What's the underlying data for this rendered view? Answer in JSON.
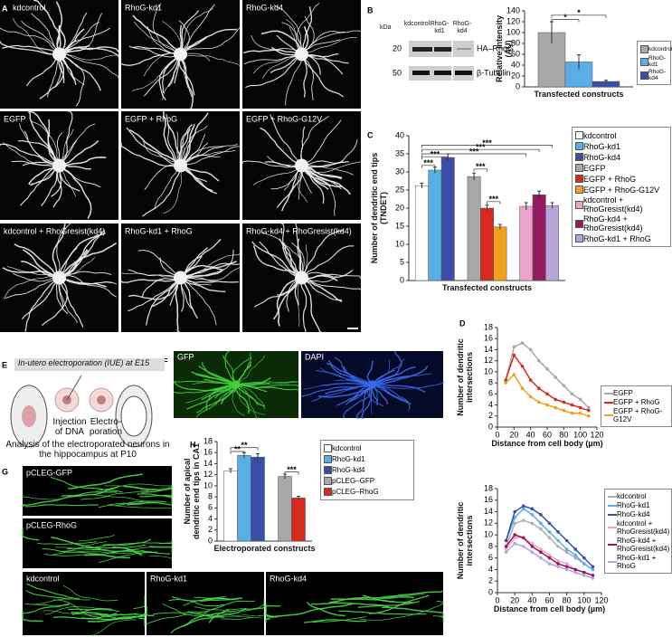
{
  "panel_labels": [
    "A",
    "B",
    "C",
    "D",
    "E",
    "F",
    "G",
    "H"
  ],
  "panel_a": [
    "kdcontrol",
    "RhoG-kd1",
    "RhoG-kd4",
    "EGFP",
    "EGFP + RhoG",
    "EGFP + RhoG-G12V",
    "kdcontrol + RhoGresist(kd4)",
    "RhoG-kd1 + RhoG",
    "RhoG-kd4 + RhoGresist(kd4)"
  ],
  "blot": {
    "unit": "kDa",
    "lanes": [
      "kdcontrol",
      "RhoG-kd1",
      "RhoG-kd4"
    ],
    "markers": [
      20,
      50
    ],
    "bands": [
      "HA–RhoG",
      "β-Tubulin"
    ]
  },
  "panel_e": {
    "title": "In-utero electroporation (IUE) at E15",
    "steps": [
      "Injection of DNA",
      "Electro-poration"
    ],
    "caption": "Analysis of the electroporated neurons in the hippocampus at P10"
  },
  "panel_f": [
    "GFP",
    "DAPI"
  ],
  "panel_g": [
    "pCLEG-GFP",
    "pCLEG-RhoG",
    "kdcontrol",
    "RhoG-kd1",
    "RhoG-kd4"
  ],
  "chart_data": [
    {
      "type": "bar",
      "ylabel": "Relative intensity (AU)",
      "xlabel": "Transfected constructs",
      "ylim": [
        0,
        140
      ],
      "yticks": [
        0,
        20,
        40,
        60,
        80,
        100,
        120,
        140
      ],
      "series": [
        {
          "name": "kdcontrol",
          "color": "#a8a8a8",
          "values": [
            100
          ],
          "errors": [
            20
          ]
        },
        {
          "name": "RhoG-kd1",
          "color": "#5aaee6",
          "values": [
            46
          ],
          "errors": [
            13
          ]
        },
        {
          "name": "RhoG-kd4",
          "color": "#3a4ea8",
          "values": [
            10
          ],
          "errors": [
            2
          ]
        }
      ],
      "annotations": [
        "*",
        "*"
      ]
    },
    {
      "type": "bar",
      "ylabel": "Number of dendritic end tips (TNDET)",
      "xlabel": "Transfected constructs",
      "ylim": [
        0,
        40
      ],
      "yticks": [
        0,
        5,
        10,
        15,
        20,
        25,
        30,
        35,
        40
      ],
      "series": [
        {
          "name": "kdcontrol",
          "color": "#ffffff",
          "values": [
            26.2
          ],
          "errors": [
            0.7
          ]
        },
        {
          "name": "RhoG-kd1",
          "color": "#5aaee6",
          "values": [
            30.5
          ],
          "errors": [
            0.8
          ]
        },
        {
          "name": "RhoG-kd4",
          "color": "#3a4ea8",
          "values": [
            34
          ],
          "errors": [
            1
          ]
        },
        {
          "name": "EGFP",
          "color": "#a8a8a8",
          "values": [
            28.7
          ],
          "errors": [
            1
          ]
        },
        {
          "name": "EGFP + RhoG",
          "color": "#d42a20",
          "values": [
            20
          ],
          "errors": [
            0.8
          ]
        },
        {
          "name": "EGFP + RhoG-G12V",
          "color": "#f0a020",
          "values": [
            14.8
          ],
          "errors": [
            0.7
          ]
        },
        {
          "name": "kdcontrol + RhoGresist(kd4)",
          "color": "#eca4cc",
          "values": [
            20.5
          ],
          "errors": [
            1
          ]
        },
        {
          "name": "RhoG-kd4 + RhoGresist(kd4)",
          "color": "#921a5e",
          "values": [
            23.7
          ],
          "errors": [
            1
          ]
        },
        {
          "name": "RhoG-kd1 + RhoG",
          "color": "#b8a4d8",
          "values": [
            20.7
          ],
          "errors": [
            0.8
          ]
        }
      ],
      "annotations": [
        "***",
        "***",
        "***",
        "***",
        "***",
        "***",
        "***"
      ]
    },
    {
      "type": "line",
      "ylabel": "Number of dendritic intersections",
      "xlabel": "Distance from cell body (µm)",
      "x": [
        10,
        20,
        30,
        40,
        50,
        60,
        70,
        80,
        90,
        100,
        110
      ],
      "xlim": [
        0,
        120
      ],
      "xticks": [
        0,
        20,
        40,
        60,
        80,
        100,
        120
      ],
      "ylim": [
        0,
        18
      ],
      "yticks": [
        0,
        2,
        4,
        6,
        8,
        10,
        12,
        14,
        16,
        18
      ],
      "series": [
        {
          "name": "EGFP",
          "color": "#a8a8a8",
          "values": [
            8.5,
            14.5,
            15.2,
            14,
            12,
            10.5,
            9,
            7.5,
            6,
            5,
            3.5
          ]
        },
        {
          "name": "EGFP + RhoG",
          "color": "#d42a20",
          "values": [
            8.5,
            13,
            11,
            8.5,
            7,
            6,
            5,
            4.5,
            4,
            3.5,
            3
          ]
        },
        {
          "name": "EGFP + RhoG-G12V",
          "color": "#f0a020",
          "values": [
            8,
            9.5,
            7,
            5.5,
            4.5,
            4,
            3.5,
            3,
            2.5,
            2.5,
            2
          ]
        }
      ]
    },
    {
      "type": "line",
      "ylabel": "Number of dendritic intersections",
      "xlabel": "Distance from cell body (µm)",
      "x": [
        10,
        20,
        30,
        40,
        50,
        60,
        70,
        80,
        90,
        100,
        110
      ],
      "xlim": [
        0,
        120
      ],
      "xticks": [
        0,
        20,
        40,
        60,
        80,
        100,
        120
      ],
      "ylim": [
        0,
        18
      ],
      "yticks": [
        0,
        2,
        4,
        6,
        8,
        10,
        12,
        14,
        16,
        18
      ],
      "series": [
        {
          "name": "kdcontrol",
          "color": "#b0b0b0",
          "values": [
            8,
            12,
            12.5,
            12,
            11,
            9.5,
            8,
            7,
            6,
            5,
            4
          ]
        },
        {
          "name": "RhoG-kd1",
          "color": "#5aaee6",
          "values": [
            9,
            13,
            14.5,
            13.5,
            12,
            10.5,
            9,
            7.5,
            6.5,
            5,
            4
          ]
        },
        {
          "name": "RhoG-kd4",
          "color": "#3a4ea8",
          "values": [
            9,
            14,
            15,
            14.5,
            13.5,
            12,
            10.5,
            9,
            7.5,
            6,
            4.5
          ]
        },
        {
          "name": "kdcontrol + RhoGresist(kd4)",
          "color": "#eca4cc",
          "values": [
            7.5,
            9.5,
            9.5,
            8.5,
            7.5,
            6.5,
            5.5,
            5,
            4,
            3.5,
            3
          ]
        },
        {
          "name": "RhoG-kd4 + RhoGresist(kd4)",
          "color": "#921a5e",
          "values": [
            8,
            10,
            9.5,
            8,
            7,
            6,
            5,
            4.5,
            4,
            3.5,
            3
          ]
        },
        {
          "name": "RhoG-kd1 + RhoG",
          "color": "#b8a4d8",
          "values": [
            7,
            8.5,
            8,
            7,
            6,
            5,
            4.5,
            4,
            3.5,
            3,
            2.5
          ]
        }
      ]
    },
    {
      "type": "bar",
      "ylabel": "Number of apical dendritic end tips in CA1",
      "xlabel": "Electroporated constructs",
      "ylim": [
        0,
        18
      ],
      "yticks": [
        0,
        2,
        4,
        6,
        8,
        10,
        12,
        14,
        16,
        18
      ],
      "series": [
        {
          "name": "kdcontrol",
          "color": "#ffffff",
          "values": [
            12.7
          ],
          "errors": [
            0.4
          ]
        },
        {
          "name": "RhoG-kd1",
          "color": "#5aaee6",
          "values": [
            15.5
          ],
          "errors": [
            0.5
          ]
        },
        {
          "name": "RhoG-kd4",
          "color": "#3a4ea8",
          "values": [
            15.2
          ],
          "errors": [
            0.6
          ]
        },
        {
          "name": "pCLEG–GFP",
          "color": "#a8a8a8",
          "values": [
            11.7
          ],
          "errors": [
            0.4
          ]
        },
        {
          "name": "pCLEG–RhoG",
          "color": "#d42a20",
          "values": [
            7.8
          ],
          "errors": [
            0.3
          ]
        }
      ],
      "annotations": [
        "**",
        "**",
        "***"
      ]
    }
  ]
}
